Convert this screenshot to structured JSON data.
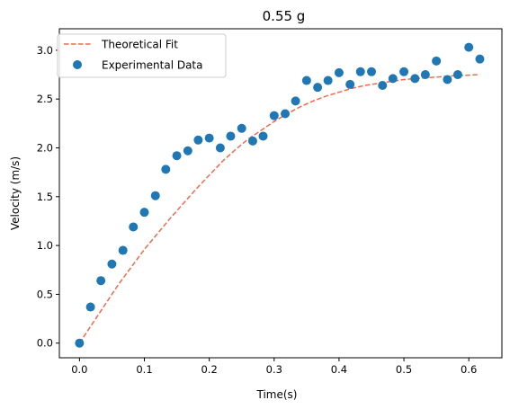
{
  "chart_data": {
    "type": "scatter",
    "title": "0.55 g",
    "xlabel": "Time(s)",
    "ylabel": "Velocity (m/s)",
    "xlim": [
      -0.031,
      0.651
    ],
    "ylim": [
      -0.15,
      3.22
    ],
    "xticks": [
      0.0,
      0.1,
      0.2,
      0.3,
      0.4,
      0.5,
      0.6
    ],
    "xtick_labels": [
      "0.0",
      "0.1",
      "0.2",
      "0.3",
      "0.4",
      "0.5",
      "0.6"
    ],
    "yticks": [
      0.0,
      0.5,
      1.0,
      1.5,
      2.0,
      2.5,
      3.0
    ],
    "ytick_labels": [
      "0.0",
      "0.5",
      "1.0",
      "1.5",
      "2.0",
      "2.5",
      "3.0"
    ],
    "grid": false,
    "legend": {
      "placement": "top-left"
    },
    "series": [
      {
        "name": "Theoretical Fit",
        "kind": "line",
        "style": "dashed",
        "color": "#f4684b",
        "x": [
          0.0,
          0.02,
          0.04,
          0.06,
          0.08,
          0.1,
          0.12,
          0.14,
          0.16,
          0.18,
          0.2,
          0.22,
          0.24,
          0.26,
          0.28,
          0.3,
          0.32,
          0.34,
          0.36,
          0.38,
          0.4,
          0.42,
          0.44,
          0.46,
          0.48,
          0.5,
          0.52,
          0.54,
          0.56,
          0.58,
          0.6,
          0.617
        ],
        "y": [
          0.0,
          0.2,
          0.4,
          0.6,
          0.78,
          0.96,
          1.12,
          1.28,
          1.43,
          1.58,
          1.72,
          1.86,
          1.98,
          2.09,
          2.18,
          2.27,
          2.35,
          2.42,
          2.48,
          2.53,
          2.57,
          2.61,
          2.64,
          2.66,
          2.68,
          2.7,
          2.71,
          2.72,
          2.73,
          2.74,
          2.745,
          2.75
        ]
      },
      {
        "name": "Experimental Data",
        "kind": "scatter",
        "color": "#1f77b4",
        "x": [
          0.0,
          0.017,
          0.033,
          0.05,
          0.067,
          0.083,
          0.1,
          0.117,
          0.133,
          0.15,
          0.167,
          0.183,
          0.2,
          0.217,
          0.233,
          0.25,
          0.267,
          0.283,
          0.3,
          0.317,
          0.333,
          0.35,
          0.367,
          0.383,
          0.4,
          0.417,
          0.433,
          0.45,
          0.467,
          0.483,
          0.5,
          0.517,
          0.533,
          0.55,
          0.567,
          0.583,
          0.6,
          0.617
        ],
        "y": [
          0.0,
          0.37,
          0.64,
          0.81,
          0.95,
          1.19,
          1.34,
          1.51,
          1.78,
          1.92,
          1.97,
          2.08,
          2.1,
          2.0,
          2.12,
          2.2,
          2.07,
          2.12,
          2.33,
          2.35,
          2.48,
          2.69,
          2.62,
          2.69,
          2.77,
          2.65,
          2.78,
          2.78,
          2.64,
          2.71,
          2.78,
          2.71,
          2.75,
          2.89,
          2.7,
          2.75,
          3.03,
          2.91
        ]
      }
    ]
  }
}
